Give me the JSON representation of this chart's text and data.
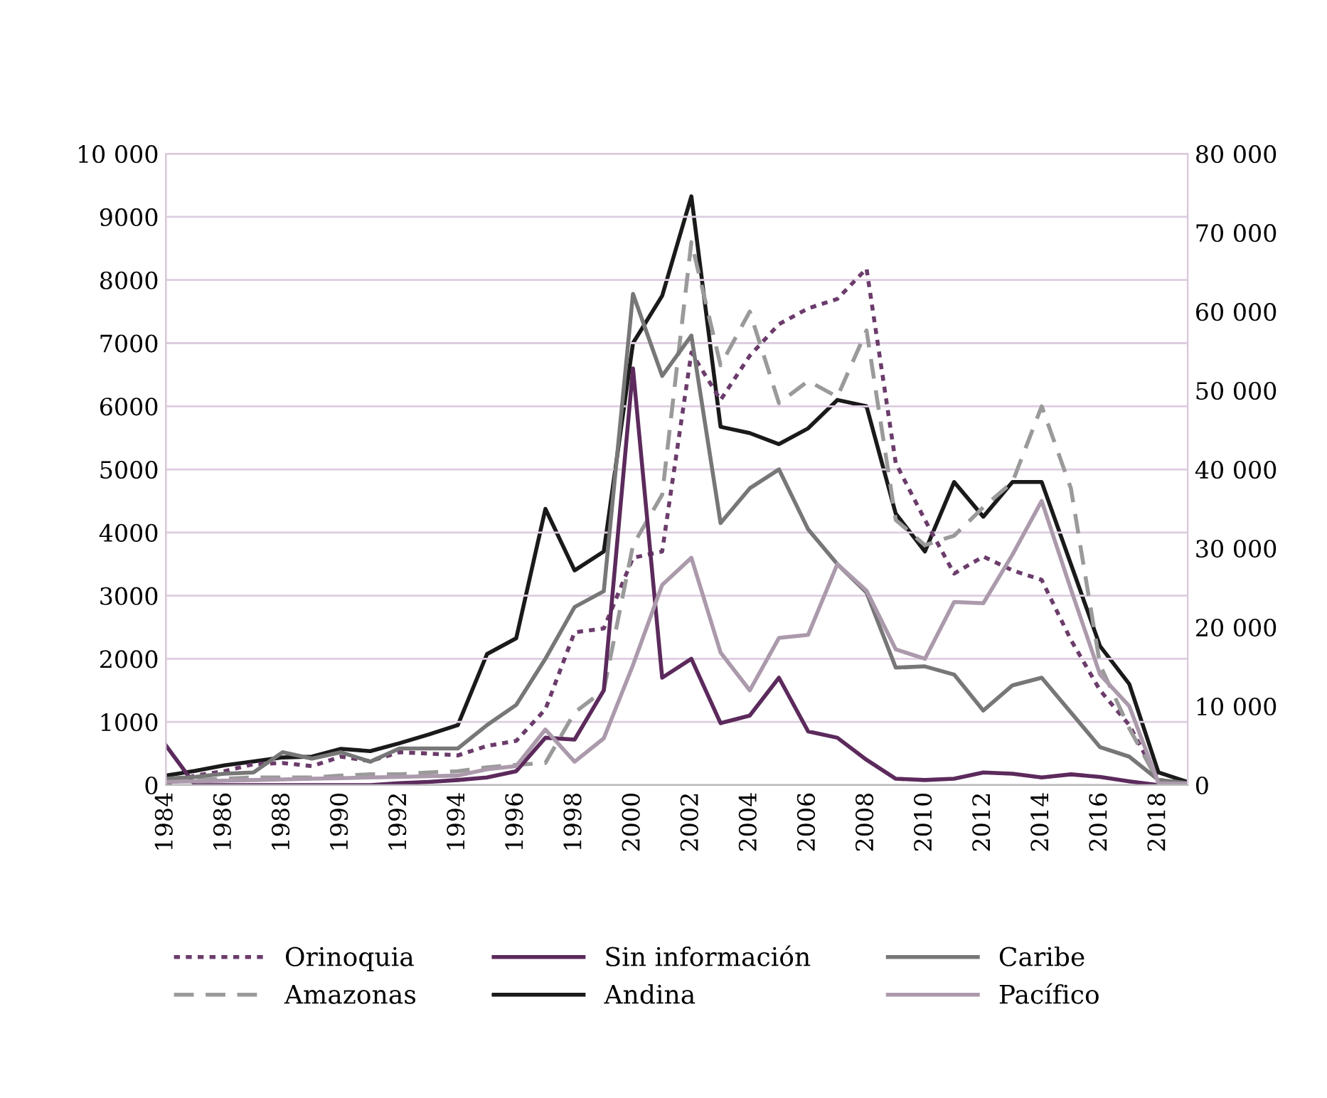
{
  "chart_data": {
    "type": "line",
    "x": [
      1984,
      1985,
      1986,
      1987,
      1988,
      1989,
      1990,
      1991,
      1992,
      1993,
      1994,
      1995,
      1996,
      1997,
      1998,
      1999,
      2000,
      2001,
      2002,
      2003,
      2004,
      2005,
      2006,
      2007,
      2008,
      2009,
      2010,
      2011,
      2012,
      2013,
      2014,
      2015,
      2016,
      2017,
      2018,
      2019
    ],
    "series": [
      {
        "name": "Orinoquia",
        "color": "#6b3c6b",
        "line_style": "dotted",
        "values": [
          20,
          150,
          220,
          330,
          350,
          300,
          450,
          380,
          520,
          500,
          470,
          620,
          700,
          1200,
          2420,
          2480,
          3600,
          3700,
          6850,
          6100,
          6800,
          7300,
          7550,
          7700,
          8180,
          5100,
          4200,
          3350,
          3620,
          3400,
          3250,
          2300,
          1500,
          950,
          80,
          30
        ]
      },
      {
        "name": "Amazonas",
        "color": "#9a9a9a",
        "line_style": "dashed",
        "values": [
          50,
          80,
          100,
          120,
          120,
          120,
          150,
          170,
          170,
          200,
          220,
          280,
          320,
          350,
          1150,
          1500,
          3800,
          4600,
          8600,
          6650,
          7500,
          6050,
          6400,
          6150,
          7200,
          4200,
          3800,
          3950,
          4400,
          4800,
          6000,
          4700,
          1900,
          900,
          50,
          20
        ]
      },
      {
        "name": "Sin información",
        "color": "#5c2a5c",
        "line_style": "solid",
        "values": [
          630,
          0,
          0,
          0,
          0,
          0,
          0,
          0,
          30,
          50,
          80,
          120,
          220,
          750,
          720,
          1500,
          6600,
          1700,
          2000,
          980,
          1100,
          1700,
          850,
          750,
          400,
          100,
          80,
          100,
          200,
          180,
          120,
          170,
          130,
          60,
          0,
          0
        ]
      },
      {
        "name": "Andina",
        "color": "#1a1a1a",
        "line_style": "solid",
        "axis": "y2",
        "values": [
          1200,
          1800,
          2500,
          3000,
          3500,
          3600,
          4600,
          4300,
          5300,
          6400,
          7600,
          16600,
          18600,
          35000,
          27200,
          29600,
          56000,
          62000,
          74600,
          45400,
          44600,
          43200,
          45200,
          48800,
          48000,
          34400,
          29600,
          38400,
          34000,
          38400,
          38400,
          28000,
          17600,
          12800,
          1600,
          400
        ]
      },
      {
        "name": "Caribe",
        "color": "#777777",
        "line_style": "solid",
        "values": [
          100,
          130,
          180,
          200,
          520,
          420,
          520,
          370,
          580,
          580,
          580,
          950,
          1270,
          2000,
          2820,
          3070,
          7780,
          6480,
          7120,
          4150,
          4700,
          5000,
          4050,
          3500,
          3050,
          1860,
          1880,
          1750,
          1180,
          1580,
          1700,
          1150,
          600,
          450,
          80,
          30
        ]
      },
      {
        "name": "Pacífico",
        "color": "#ab9aab",
        "line_style": "solid",
        "values": [
          50,
          60,
          70,
          80,
          90,
          100,
          110,
          120,
          130,
          140,
          150,
          250,
          300,
          880,
          370,
          740,
          1900,
          3170,
          3600,
          2100,
          1500,
          2330,
          2380,
          3500,
          3080,
          2150,
          2000,
          2900,
          2880,
          3650,
          4500,
          3100,
          1750,
          1250,
          30,
          20
        ]
      }
    ],
    "xlim": [
      1984,
      2019
    ],
    "xticks": [
      1984,
      1986,
      1988,
      1990,
      1992,
      1994,
      1996,
      1998,
      2000,
      2002,
      2004,
      2006,
      2008,
      2010,
      2012,
      2014,
      2016,
      2018
    ],
    "ylim": [
      0,
      10000
    ],
    "yticks": [
      0,
      1000,
      2000,
      3000,
      4000,
      5000,
      6000,
      7000,
      8000,
      9000,
      {
        "value": 10000,
        "label": "10 000"
      }
    ],
    "y2lim": [
      0,
      80000
    ],
    "y2ticks": [
      0,
      {
        "value": 10000,
        "label": "10 000"
      },
      {
        "value": 20000,
        "label": "20 000"
      },
      {
        "value": 30000,
        "label": "30 000"
      },
      {
        "value": 40000,
        "label": "40 000"
      },
      {
        "value": 50000,
        "label": "50 000"
      },
      {
        "value": 60000,
        "label": "60 000"
      },
      {
        "value": 70000,
        "label": "70 000"
      },
      {
        "value": 80000,
        "label": "80 000"
      }
    ],
    "grid": "y",
    "legend": "bottom",
    "marker": "none"
  }
}
